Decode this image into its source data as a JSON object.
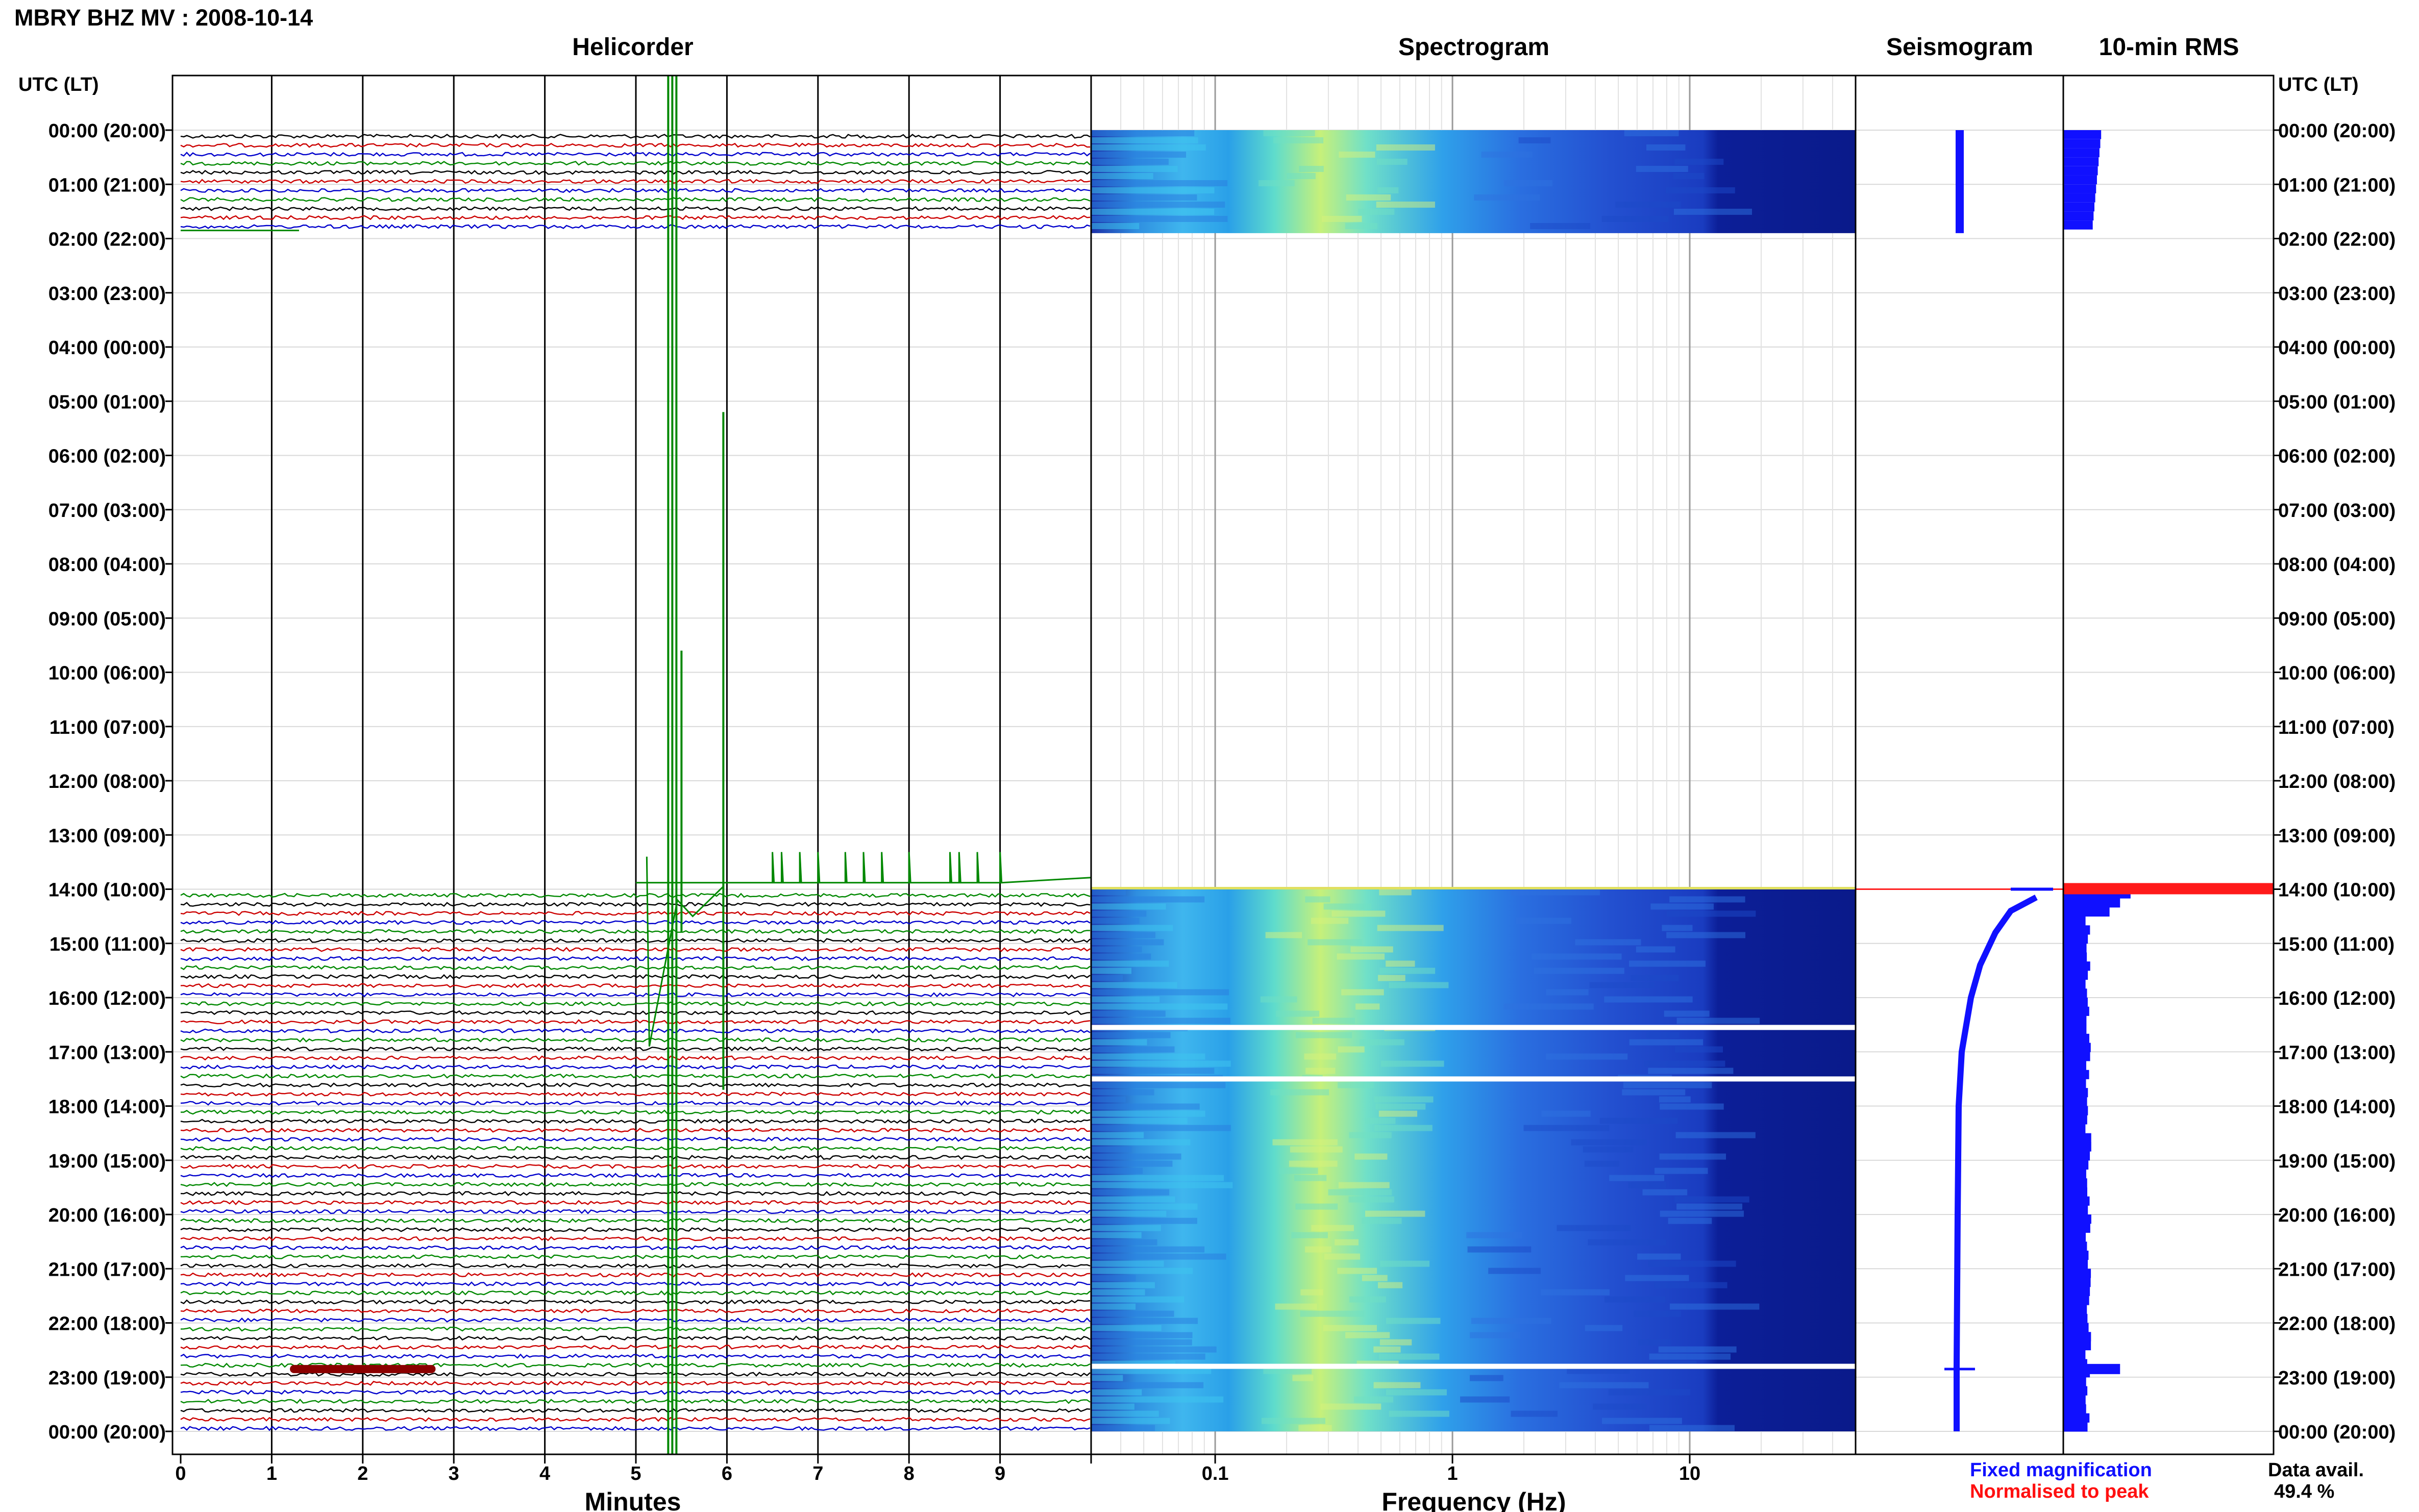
{
  "header": {
    "station_title": "MBRY BHZ MV : 2008-10-14"
  },
  "panels": {
    "helicorder": "Helicorder",
    "spectrogram": "Spectrogram",
    "seismogram": "Seismogram",
    "rms": "10-min RMS"
  },
  "time_axis": {
    "header_left": "UTC (LT)",
    "header_right": "UTC (LT)",
    "labels": [
      "00:00 (20:00)",
      "01:00 (21:00)",
      "02:00 (22:00)",
      "03:00 (23:00)",
      "04:00 (00:00)",
      "05:00 (01:00)",
      "06:00 (02:00)",
      "07:00 (03:00)",
      "08:00 (04:00)",
      "09:00 (05:00)",
      "10:00 (06:00)",
      "11:00 (07:00)",
      "12:00 (08:00)",
      "13:00 (09:00)",
      "14:00 (10:00)",
      "15:00 (11:00)",
      "16:00 (12:00)",
      "17:00 (13:00)",
      "18:00 (14:00)",
      "19:00 (15:00)",
      "20:00 (16:00)",
      "21:00 (17:00)",
      "22:00 (18:00)",
      "23:00 (19:00)",
      "00:00 (20:00)"
    ]
  },
  "helicorder_axis": {
    "xlabel": "Minutes",
    "ticks": [
      "0",
      "1",
      "2",
      "3",
      "4",
      "5",
      "6",
      "7",
      "8",
      "9"
    ]
  },
  "spectrogram_axis": {
    "xlabel": "Frequency (Hz)",
    "ticks": [
      "0.1",
      "1",
      "10"
    ]
  },
  "legend": {
    "fixed": "Fixed magnification",
    "normalised": "Normalised to peak",
    "fixed_color": "#1010ff",
    "normalised_color": "#ff1010"
  },
  "data_availability": {
    "label": "Data avail.",
    "value": "49.4 %"
  },
  "chart_data": [
    {
      "type": "line",
      "panel": "Helicorder",
      "xlabel": "Minutes",
      "xlim": [
        0,
        10
      ],
      "ylim_hours": [
        0,
        24
      ],
      "rows_per_hour": 6,
      "trace_colors": [
        "#000000",
        "#cc0000",
        "#0000cc",
        "#008800"
      ],
      "data_segments_hours": [
        [
          0,
          1.75
        ],
        [
          14,
          24
        ]
      ],
      "events": [
        {
          "hour": 13.9,
          "minute": 5.4,
          "note": "large transient"
        },
        {
          "hour": 22.85,
          "minute_start": 1.2,
          "minute_end": 2.8,
          "note": "tremor burst"
        }
      ]
    },
    {
      "type": "heatmap",
      "panel": "Spectrogram",
      "xlabel": "Frequency (Hz)",
      "xscale": "log",
      "xlim": [
        0.03,
        50
      ],
      "ylim_hours": [
        0,
        24
      ],
      "colormap": [
        "#1b2fa8",
        "#2aa8e8",
        "#4ed8c0",
        "#c8f070",
        "#1f4fd0",
        "#0a1a8a"
      ],
      "peak_band_hz": [
        0.2,
        0.6
      ],
      "data_segments_hours": [
        [
          0,
          1.9
        ],
        [
          14,
          24
        ]
      ],
      "gaps_hours": [
        16.55,
        17.5,
        22.8
      ]
    },
    {
      "type": "line",
      "panel": "Seismogram",
      "ylim_hours": [
        0,
        24
      ],
      "data_segments_hours": [
        [
          0,
          1.9
        ],
        [
          14,
          24
        ]
      ],
      "peak_hour": 14.0
    },
    {
      "type": "bar",
      "panel": "10-min RMS",
      "orientation": "horizontal",
      "ylim_hours": [
        0,
        24
      ],
      "peak": {
        "hour": 14.0,
        "value": 1.0
      },
      "secondary": {
        "hour": 22.85,
        "value": 0.27
      },
      "typical_value": 0.12
    }
  ]
}
